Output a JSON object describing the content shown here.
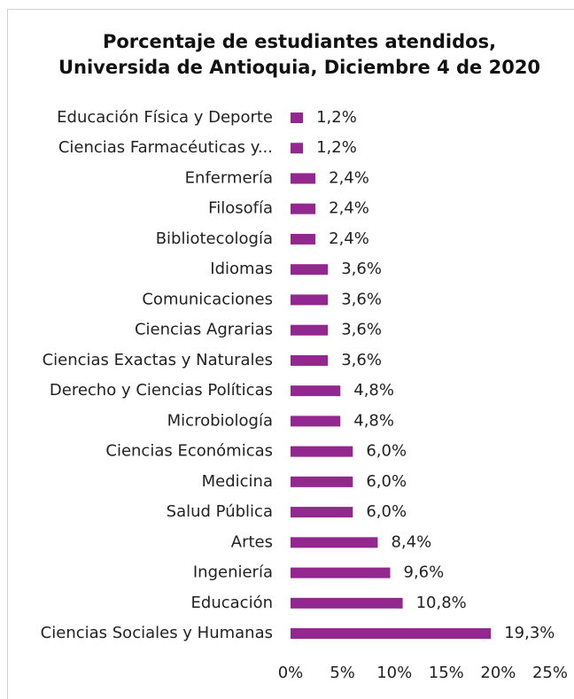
{
  "chart_data": {
    "type": "barh",
    "title": [
      "Porcentaje de estudiantes atendidos,",
      "Universida de Antioquia, Diciembre 4 de 2020"
    ],
    "categories": [
      "Educación Física y Deporte",
      "Ciencias Farmacéuticas y...",
      "Enfermería",
      "Filosofía",
      "Bibliotecología",
      "Idiomas",
      "Comunicaciones",
      "Ciencias Agrarias",
      "Ciencias Exactas y Naturales",
      "Derecho y Ciencias Políticas",
      "Microbiología",
      "Ciencias Económicas",
      "Medicina",
      "Salud Pública",
      "Artes",
      "Ingeniería",
      "Educación",
      "Ciencias Sociales y Humanas"
    ],
    "values": [
      1.2,
      1.2,
      2.4,
      2.4,
      2.4,
      3.6,
      3.6,
      3.6,
      3.6,
      4.8,
      4.8,
      6.0,
      6.0,
      6.0,
      8.4,
      9.6,
      10.8,
      19.3
    ],
    "value_labels": [
      "1,2%",
      "1,2%",
      "2,4%",
      "2,4%",
      "2,4%",
      "3,6%",
      "3,6%",
      "3,6%",
      "3,6%",
      "4,8%",
      "4,8%",
      "6,0%",
      "6,0%",
      "6,0%",
      "8,4%",
      "9,6%",
      "10,8%",
      "19,3%"
    ],
    "color": "#92278f",
    "xlim": [
      0,
      25
    ],
    "xticks": [
      {
        "value": 0,
        "label": "0%"
      },
      {
        "value": 5,
        "label": "5%"
      },
      {
        "value": 10,
        "label": "10%"
      },
      {
        "value": 15,
        "label": "15%"
      },
      {
        "value": 20,
        "label": "20%"
      },
      {
        "value": 25,
        "label": "25%"
      }
    ],
    "grid": false
  }
}
